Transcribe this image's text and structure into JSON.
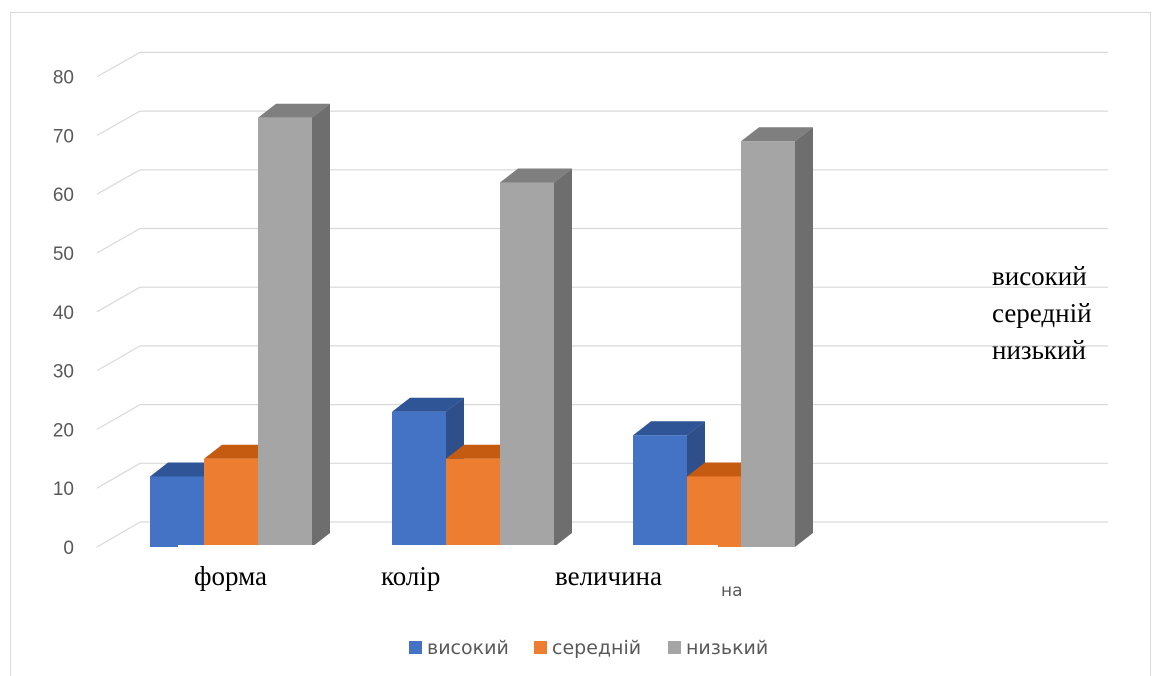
{
  "chart_data": {
    "type": "bar",
    "categories": [
      "форма",
      "колір",
      "величина"
    ],
    "series": [
      {
        "name": "високий",
        "values": [
          12,
          23,
          19
        ],
        "color": "#4472C4",
        "top_color": "#2F5597",
        "side_color": "#2F4F8A"
      },
      {
        "name": "середній",
        "values": [
          15,
          15,
          12
        ],
        "color": "#ED7D31",
        "top_color": "#C55A11",
        "side_color": "#B85A1E"
      },
      {
        "name": "низький",
        "values": [
          73,
          62,
          69
        ],
        "color": "#A5A5A5",
        "top_color": "#7F7F7F",
        "side_color": "#6E6E6E"
      }
    ],
    "ylim": [
      0,
      80
    ],
    "yticks": [
      "0",
      "10",
      "20",
      "30",
      "40",
      "50",
      "60",
      "70",
      "80"
    ],
    "grid": true,
    "legend": {
      "placement": "bottom",
      "entries": [
        "високий",
        "середній",
        "низький"
      ]
    },
    "side_legend": {
      "placement": "right",
      "entries": [
        "високий",
        "середній",
        "низький"
      ]
    },
    "partial_label": "на"
  }
}
